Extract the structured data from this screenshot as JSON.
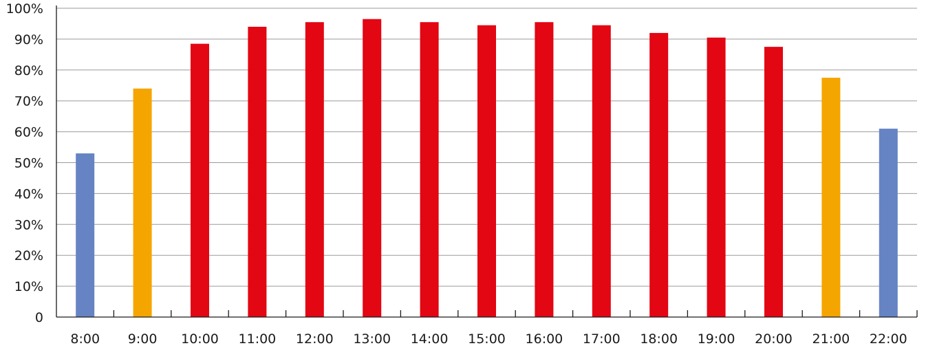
{
  "chart_data": {
    "type": "bar",
    "categories": [
      "8:00",
      "9:00",
      "10:00",
      "11:00",
      "12:00",
      "13:00",
      "14:00",
      "15:00",
      "16:00",
      "17:00",
      "18:00",
      "19:00",
      "20:00",
      "21:00",
      "22:00"
    ],
    "values": [
      53,
      74,
      88.5,
      94,
      95.5,
      96.5,
      95.5,
      94.5,
      95.5,
      94.5,
      92,
      90.5,
      87.5,
      77.5,
      61
    ],
    "bar_colors": [
      "#6684c4",
      "#f5a500",
      "#e30613",
      "#e30613",
      "#e30613",
      "#e30613",
      "#e30613",
      "#e30613",
      "#e30613",
      "#e30613",
      "#e30613",
      "#e30613",
      "#e30613",
      "#f5a500",
      "#6684c4"
    ],
    "ylim": [
      0,
      100
    ],
    "y_ticks": [
      0,
      10,
      20,
      30,
      40,
      50,
      60,
      70,
      80,
      90,
      100
    ],
    "y_tick_labels": [
      "0",
      "10%",
      "20%",
      "30%",
      "40%",
      "50%",
      "60%",
      "70%",
      "80%",
      "90%",
      "100%"
    ],
    "grid": true,
    "legend": "none"
  }
}
